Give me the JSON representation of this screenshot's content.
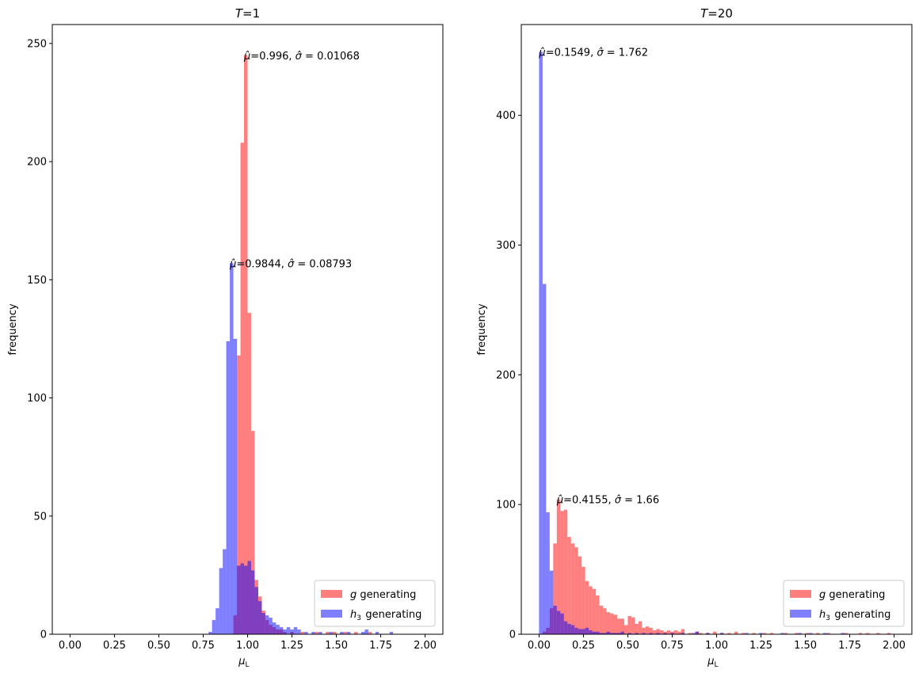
{
  "chart_data": [
    {
      "type": "histogram",
      "title": "T=1",
      "xlabel": "μL",
      "ylabel": "frequency",
      "xlim": [
        -0.1,
        2.1
      ],
      "ylim": [
        0,
        258
      ],
      "x_ticks": [
        "0.00",
        "0.25",
        "0.50",
        "0.75",
        "1.00",
        "1.25",
        "1.50",
        "1.75",
        "2.00"
      ],
      "y_ticks": [
        "0",
        "50",
        "100",
        "150",
        "200",
        "250"
      ],
      "legend": {
        "position": "lower-right",
        "entries": [
          "g generating",
          "h3 generating"
        ]
      },
      "bin_width": 0.02,
      "series": [
        {
          "name": "g generating",
          "color": "#ff0000",
          "opacity": 0.5,
          "bins": [
            [
              0.92,
              8
            ],
            [
              0.94,
              118
            ],
            [
              0.96,
              208
            ],
            [
              0.98,
              245
            ],
            [
              1.0,
              136
            ],
            [
              1.02,
              86
            ],
            [
              1.04,
              23
            ],
            [
              1.06,
              16
            ],
            [
              1.08,
              10
            ],
            [
              1.1,
              6
            ],
            [
              1.12,
              4
            ],
            [
              1.14,
              3
            ],
            [
              1.16,
              2
            ],
            [
              1.18,
              2
            ],
            [
              1.2,
              1
            ],
            [
              1.24,
              1
            ],
            [
              1.3,
              1
            ],
            [
              1.38,
              1
            ],
            [
              1.44,
              1
            ],
            [
              1.48,
              1
            ],
            [
              1.54,
              1
            ],
            [
              1.6,
              1
            ],
            [
              1.68,
              1
            ]
          ],
          "annotation": {
            "mu": "0.996",
            "sigma": "0.01068",
            "x": 0.98,
            "y": 245
          }
        },
        {
          "name": "h3 generating",
          "color": "#0000ff",
          "opacity": 0.5,
          "bins": [
            [
              0.78,
              1
            ],
            [
              0.8,
              6
            ],
            [
              0.82,
              11
            ],
            [
              0.84,
              28
            ],
            [
              0.86,
              36
            ],
            [
              0.88,
              124
            ],
            [
              0.9,
              157
            ],
            [
              0.92,
              125
            ],
            [
              0.94,
              29
            ],
            [
              0.96,
              30
            ],
            [
              0.98,
              29
            ],
            [
              1.0,
              31
            ],
            [
              1.02,
              27
            ],
            [
              1.04,
              20
            ],
            [
              1.06,
              14
            ],
            [
              1.08,
              9
            ],
            [
              1.1,
              8
            ],
            [
              1.12,
              7
            ],
            [
              1.14,
              5
            ],
            [
              1.16,
              4
            ],
            [
              1.18,
              3
            ],
            [
              1.2,
              2
            ],
            [
              1.22,
              3
            ],
            [
              1.24,
              2
            ],
            [
              1.26,
              3
            ],
            [
              1.28,
              2
            ],
            [
              1.32,
              1
            ],
            [
              1.36,
              1
            ],
            [
              1.4,
              1
            ],
            [
              1.46,
              1
            ],
            [
              1.52,
              1
            ],
            [
              1.56,
              1
            ],
            [
              1.64,
              1
            ],
            [
              1.66,
              2
            ],
            [
              1.72,
              1
            ],
            [
              1.8,
              1
            ]
          ],
          "annotation": {
            "mu": "0.9844",
            "sigma": "0.08793",
            "x": 0.9,
            "y": 157
          }
        }
      ]
    },
    {
      "type": "histogram",
      "title": "T=20",
      "xlabel": "μL",
      "ylabel": "frequency",
      "xlim": [
        -0.1,
        2.1
      ],
      "ylim": [
        0,
        470
      ],
      "x_ticks": [
        "0.00",
        "0.25",
        "0.50",
        "0.75",
        "1.00",
        "1.25",
        "1.50",
        "1.75",
        "2.00"
      ],
      "y_ticks": [
        "0",
        "100",
        "200",
        "300",
        "400"
      ],
      "legend": {
        "position": "lower-right",
        "entries": [
          "g generating",
          "h3 generating"
        ]
      },
      "bin_width": 0.02,
      "series": [
        {
          "name": "g generating",
          "color": "#ff0000",
          "opacity": 0.5,
          "bins": [
            [
              0.02,
              2
            ],
            [
              0.04,
              5
            ],
            [
              0.06,
              20
            ],
            [
              0.08,
              70
            ],
            [
              0.1,
              104
            ],
            [
              0.12,
              95
            ],
            [
              0.14,
              96
            ],
            [
              0.16,
              75
            ],
            [
              0.18,
              70
            ],
            [
              0.2,
              67
            ],
            [
              0.22,
              60
            ],
            [
              0.24,
              52
            ],
            [
              0.26,
              41
            ],
            [
              0.28,
              37
            ],
            [
              0.3,
              35
            ],
            [
              0.32,
              30
            ],
            [
              0.34,
              22
            ],
            [
              0.36,
              20
            ],
            [
              0.38,
              17
            ],
            [
              0.4,
              16
            ],
            [
              0.42,
              15
            ],
            [
              0.44,
              12
            ],
            [
              0.46,
              12
            ],
            [
              0.48,
              7
            ],
            [
              0.5,
              14
            ],
            [
              0.52,
              13
            ],
            [
              0.54,
              8
            ],
            [
              0.56,
              10
            ],
            [
              0.58,
              5
            ],
            [
              0.6,
              6
            ],
            [
              0.62,
              5
            ],
            [
              0.64,
              3
            ],
            [
              0.66,
              4
            ],
            [
              0.68,
              3
            ],
            [
              0.7,
              2
            ],
            [
              0.72,
              3
            ],
            [
              0.74,
              2
            ],
            [
              0.76,
              3
            ],
            [
              0.78,
              2
            ],
            [
              0.8,
              4
            ],
            [
              0.84,
              1
            ],
            [
              0.88,
              2
            ],
            [
              0.9,
              1
            ],
            [
              0.94,
              1
            ],
            [
              0.98,
              2
            ],
            [
              1.02,
              1
            ],
            [
              1.06,
              1
            ],
            [
              1.1,
              2
            ],
            [
              1.14,
              1
            ],
            [
              1.2,
              1
            ],
            [
              1.26,
              1
            ],
            [
              1.3,
              1
            ],
            [
              1.38,
              1
            ],
            [
              1.44,
              1
            ],
            [
              1.5,
              1
            ],
            [
              1.56,
              1
            ],
            [
              1.62,
              1
            ],
            [
              1.72,
              1
            ],
            [
              1.8,
              1
            ],
            [
              1.84,
              1
            ],
            [
              1.9,
              1
            ],
            [
              1.96,
              1
            ]
          ],
          "annotation": {
            "mu": "0.4155",
            "sigma": "1.66",
            "x": 0.1,
            "y": 104
          }
        },
        {
          "name": "h3 generating",
          "color": "#0000ff",
          "opacity": 0.5,
          "bins": [
            [
              0.0,
              449
            ],
            [
              0.02,
              270
            ],
            [
              0.04,
              94
            ],
            [
              0.06,
              49
            ],
            [
              0.08,
              22
            ],
            [
              0.1,
              18
            ],
            [
              0.12,
              16
            ],
            [
              0.14,
              10
            ],
            [
              0.16,
              8
            ],
            [
              0.18,
              7
            ],
            [
              0.2,
              5
            ],
            [
              0.22,
              4
            ],
            [
              0.24,
              4
            ],
            [
              0.26,
              5
            ],
            [
              0.28,
              3
            ],
            [
              0.3,
              2
            ],
            [
              0.32,
              2
            ],
            [
              0.34,
              1
            ],
            [
              0.36,
              1
            ],
            [
              0.38,
              2
            ],
            [
              0.4,
              1
            ],
            [
              0.42,
              1
            ],
            [
              0.44,
              1
            ],
            [
              0.46,
              2
            ],
            [
              0.5,
              1
            ],
            [
              0.54,
              1
            ],
            [
              0.58,
              1
            ],
            [
              0.62,
              1
            ],
            [
              0.66,
              1
            ],
            [
              0.7,
              1
            ],
            [
              0.74,
              1
            ],
            [
              0.8,
              1
            ],
            [
              0.86,
              1
            ],
            [
              0.88,
              2
            ],
            [
              0.94,
              1
            ],
            [
              1.02,
              1
            ],
            [
              1.16,
              1
            ],
            [
              1.24,
              1
            ],
            [
              1.36,
              1
            ],
            [
              1.46,
              1
            ],
            [
              1.52,
              1
            ],
            [
              1.6,
              1
            ],
            [
              1.7,
              1
            ]
          ],
          "annotation": {
            "mu": "0.1549",
            "sigma": "1.762",
            "x": 0.0,
            "y": 449
          }
        }
      ]
    }
  ]
}
